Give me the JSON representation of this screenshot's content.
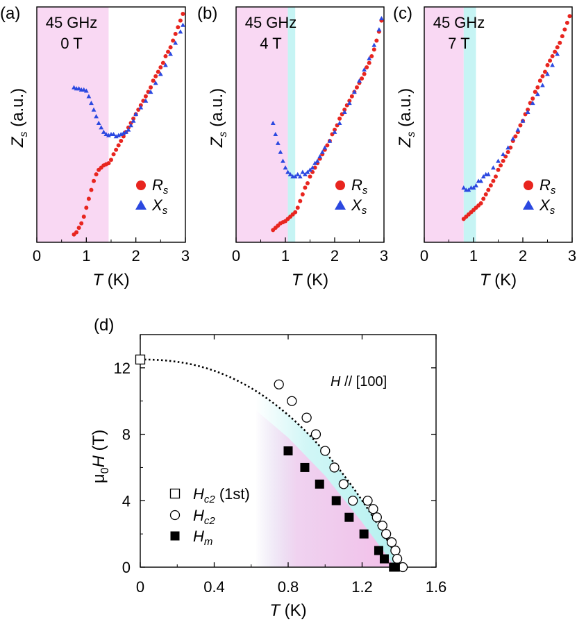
{
  "chart_data": [
    {
      "panel": "(a)",
      "type": "scatter",
      "annotation": [
        "45 GHz",
        "0 T"
      ],
      "xlabel": "T (K)",
      "ylabel": "Zs (a.u.)",
      "xlim": [
        0,
        3
      ],
      "ylim": [
        0,
        1
      ],
      "xticks": [
        "0",
        "1",
        "2",
        "3"
      ],
      "shaded": [
        {
          "from": 0,
          "to": 1.45,
          "color": "#f9d8f3"
        }
      ],
      "series": [
        {
          "name": "Rs",
          "marker": "circle",
          "color": "#e8251f",
          "x": [
            0.75,
            0.8,
            0.85,
            0.9,
            0.95,
            1.0,
            1.05,
            1.1,
            1.15,
            1.2,
            1.25,
            1.3,
            1.35,
            1.4,
            1.45,
            1.5,
            1.55,
            1.6,
            1.65,
            1.7,
            1.75,
            1.8,
            1.85,
            1.9,
            1.95,
            2.0,
            2.05,
            2.1,
            2.15,
            2.2,
            2.25,
            2.3,
            2.35,
            2.4,
            2.45,
            2.5,
            2.55,
            2.6,
            2.65,
            2.7,
            2.75,
            2.8,
            2.85,
            2.9,
            2.95
          ],
          "y": [
            0.01,
            0.02,
            0.04,
            0.06,
            0.09,
            0.13,
            0.17,
            0.21,
            0.25,
            0.28,
            0.3,
            0.31,
            0.32,
            0.325,
            0.33,
            0.345,
            0.37,
            0.39,
            0.41,
            0.43,
            0.45,
            0.47,
            0.49,
            0.51,
            0.53,
            0.55,
            0.57,
            0.59,
            0.61,
            0.63,
            0.65,
            0.67,
            0.7,
            0.72,
            0.74,
            0.76,
            0.78,
            0.81,
            0.83,
            0.85,
            0.88,
            0.91,
            0.94,
            0.97,
            1.0
          ]
        },
        {
          "name": "Xs",
          "marker": "triangle",
          "color": "#2b48e0",
          "x": [
            0.75,
            0.8,
            0.85,
            0.9,
            0.95,
            1.0,
            1.05,
            1.1,
            1.15,
            1.2,
            1.25,
            1.3,
            1.35,
            1.4,
            1.45,
            1.5,
            1.55,
            1.6,
            1.65,
            1.7,
            1.75,
            1.8,
            1.85,
            1.9,
            1.95,
            2.0,
            2.1,
            2.2,
            2.3,
            2.4,
            2.5,
            2.6,
            2.7,
            2.8,
            2.9,
            2.95
          ],
          "y": [
            0.67,
            0.665,
            0.665,
            0.66,
            0.66,
            0.655,
            0.63,
            0.6,
            0.57,
            0.54,
            0.51,
            0.49,
            0.47,
            0.46,
            0.455,
            0.46,
            0.46,
            0.45,
            0.455,
            0.46,
            0.465,
            0.47,
            0.48,
            0.5,
            0.52,
            0.55,
            0.58,
            0.61,
            0.65,
            0.69,
            0.73,
            0.77,
            0.82,
            0.87,
            0.92,
            0.95
          ]
        }
      ],
      "legend": [
        "Rs",
        "Xs"
      ]
    },
    {
      "panel": "(b)",
      "type": "scatter",
      "annotation": [
        "45 GHz",
        "4 T"
      ],
      "xlabel": "T (K)",
      "ylabel": "Zs (a.u.)",
      "xlim": [
        0,
        3
      ],
      "ylim": [
        0,
        1
      ],
      "xticks": [
        "0",
        "1",
        "2",
        "3"
      ],
      "shaded": [
        {
          "from": 0,
          "to": 1.05,
          "color": "#f9d8f3"
        },
        {
          "from": 1.05,
          "to": 1.2,
          "color": "#c6f4f4"
        }
      ],
      "series": [
        {
          "name": "Rs",
          "marker": "circle",
          "color": "#e8251f",
          "x": [
            0.75,
            0.8,
            0.85,
            0.9,
            0.95,
            1.0,
            1.05,
            1.1,
            1.15,
            1.2,
            1.25,
            1.3,
            1.35,
            1.4,
            1.45,
            1.5,
            1.55,
            1.6,
            1.65,
            1.7,
            1.75,
            1.8,
            1.85,
            1.9,
            1.95,
            2.0,
            2.05,
            2.1,
            2.15,
            2.2,
            2.25,
            2.3,
            2.35,
            2.4,
            2.45,
            2.5,
            2.55,
            2.6,
            2.65,
            2.7,
            2.75,
            2.8,
            2.85,
            2.9,
            2.95
          ],
          "y": [
            0.03,
            0.04,
            0.05,
            0.06,
            0.065,
            0.07,
            0.08,
            0.09,
            0.1,
            0.11,
            0.13,
            0.16,
            0.19,
            0.22,
            0.24,
            0.27,
            0.29,
            0.31,
            0.33,
            0.35,
            0.37,
            0.39,
            0.41,
            0.43,
            0.46,
            0.48,
            0.5,
            0.53,
            0.55,
            0.57,
            0.59,
            0.61,
            0.63,
            0.65,
            0.67,
            0.69,
            0.71,
            0.73,
            0.76,
            0.78,
            0.81,
            0.84,
            0.88,
            0.92,
            0.97
          ]
        },
        {
          "name": "Xs",
          "marker": "triangle",
          "color": "#2b48e0",
          "x": [
            0.75,
            0.8,
            0.85,
            0.9,
            0.95,
            1.0,
            1.05,
            1.1,
            1.15,
            1.2,
            1.25,
            1.3,
            1.35,
            1.4,
            1.45,
            1.5,
            1.55,
            1.6,
            1.65,
            1.7,
            1.75,
            1.8,
            1.9,
            2.0,
            2.1,
            2.2,
            2.3,
            2.4,
            2.5,
            2.6,
            2.7,
            2.8,
            2.9,
            2.95
          ],
          "y": [
            0.51,
            0.46,
            0.42,
            0.38,
            0.34,
            0.31,
            0.29,
            0.28,
            0.27,
            0.27,
            0.28,
            0.27,
            0.29,
            0.28,
            0.29,
            0.3,
            0.31,
            0.33,
            0.34,
            0.36,
            0.38,
            0.4,
            0.43,
            0.47,
            0.51,
            0.56,
            0.6,
            0.65,
            0.7,
            0.75,
            0.8,
            0.86,
            0.93,
            0.98
          ]
        }
      ],
      "legend": [
        "Rs",
        "Xs"
      ]
    },
    {
      "panel": "(c)",
      "type": "scatter",
      "annotation": [
        "45 GHz",
        "7 T"
      ],
      "xlabel": "T (K)",
      "ylabel": "Zs (a.u.)",
      "xlim": [
        0,
        3
      ],
      "ylim": [
        0,
        1
      ],
      "xticks": [
        "0",
        "1",
        "2",
        "3"
      ],
      "shaded": [
        {
          "from": 0,
          "to": 0.8,
          "color": "#f9d8f3"
        },
        {
          "from": 0.8,
          "to": 1.05,
          "color": "#c6f4f4"
        }
      ],
      "series": [
        {
          "name": "Rs",
          "marker": "circle",
          "color": "#e8251f",
          "x": [
            0.8,
            0.85,
            0.9,
            0.95,
            1.0,
            1.05,
            1.1,
            1.15,
            1.2,
            1.25,
            1.3,
            1.35,
            1.4,
            1.45,
            1.5,
            1.55,
            1.6,
            1.65,
            1.7,
            1.75,
            1.8,
            1.85,
            1.9,
            1.95,
            2.0,
            2.05,
            2.1,
            2.15,
            2.2,
            2.25,
            2.3,
            2.35,
            2.4,
            2.45,
            2.5,
            2.55,
            2.6,
            2.65,
            2.7,
            2.75,
            2.8,
            2.85,
            2.9,
            2.95
          ],
          "y": [
            0.08,
            0.09,
            0.1,
            0.11,
            0.12,
            0.13,
            0.14,
            0.15,
            0.17,
            0.19,
            0.21,
            0.23,
            0.25,
            0.27,
            0.3,
            0.32,
            0.34,
            0.36,
            0.38,
            0.4,
            0.43,
            0.45,
            0.47,
            0.5,
            0.52,
            0.55,
            0.57,
            0.6,
            0.62,
            0.65,
            0.67,
            0.7,
            0.72,
            0.74,
            0.77,
            0.79,
            0.81,
            0.83,
            0.85,
            0.87,
            0.9,
            0.93,
            0.96,
            0.99
          ]
        },
        {
          "name": "Xs",
          "marker": "triangle",
          "color": "#2b48e0",
          "x": [
            0.8,
            0.85,
            0.9,
            0.95,
            1.0,
            1.05,
            1.1,
            1.15,
            1.2,
            1.25,
            1.3,
            1.4,
            1.5,
            1.6,
            1.7,
            1.8,
            1.9,
            2.0,
            2.1,
            2.2,
            2.3,
            2.4,
            2.5,
            2.6,
            2.7
          ],
          "y": [
            0.22,
            0.21,
            0.21,
            0.22,
            0.22,
            0.23,
            0.25,
            0.25,
            0.27,
            0.28,
            0.28,
            0.31,
            0.34,
            0.37,
            0.4,
            0.44,
            0.48,
            0.52,
            0.56,
            0.6,
            0.64,
            0.68,
            0.73,
            0.77,
            0.82
          ]
        }
      ],
      "legend": [
        "Rs",
        "Xs"
      ]
    },
    {
      "panel": "(d)",
      "type": "scatter",
      "annotation": [
        "H // [100]"
      ],
      "xlabel": "T (K)",
      "ylabel": "μ0H (T)",
      "xlim": [
        0,
        1.6
      ],
      "ylim": [
        0,
        14
      ],
      "xticks": [
        "0",
        "0.4",
        "0.8",
        "1.2",
        "1.6"
      ],
      "yticks": [
        "0",
        "4",
        "8",
        "12"
      ],
      "series": [
        {
          "name": "Hc2 (1st)",
          "marker": "open-square",
          "color": "#000000",
          "x": [
            0.0
          ],
          "y": [
            12.5
          ]
        },
        {
          "name": "Hc2",
          "marker": "open-circle",
          "color": "#000000",
          "x": [
            0.75,
            0.82,
            0.9,
            0.95,
            1.0,
            1.05,
            1.1,
            1.15,
            1.23,
            1.26,
            1.28,
            1.31,
            1.33,
            1.36,
            1.38,
            1.39,
            1.42
          ],
          "y": [
            11.0,
            10.0,
            9.0,
            8.0,
            7.0,
            6.0,
            5.0,
            4.0,
            4.0,
            3.5,
            3.0,
            2.5,
            2.0,
            1.5,
            1.0,
            0.5,
            0.0
          ]
        },
        {
          "name": "Hm",
          "marker": "filled-square",
          "color": "#000000",
          "x": [
            0.8,
            0.89,
            0.97,
            1.06,
            1.13,
            1.21,
            1.29,
            1.32,
            1.37,
            1.38
          ],
          "y": [
            7.0,
            6.0,
            5.0,
            4.0,
            3.0,
            2.0,
            1.0,
            0.5,
            0.0,
            0.0
          ]
        }
      ],
      "fit_curve": {
        "label": "dotted Hc2 fit",
        "hc2_zero": 12.5,
        "tc": 1.42
      },
      "legend": [
        "Hc2 (1st)",
        "Hc2",
        "Hm"
      ]
    }
  ]
}
